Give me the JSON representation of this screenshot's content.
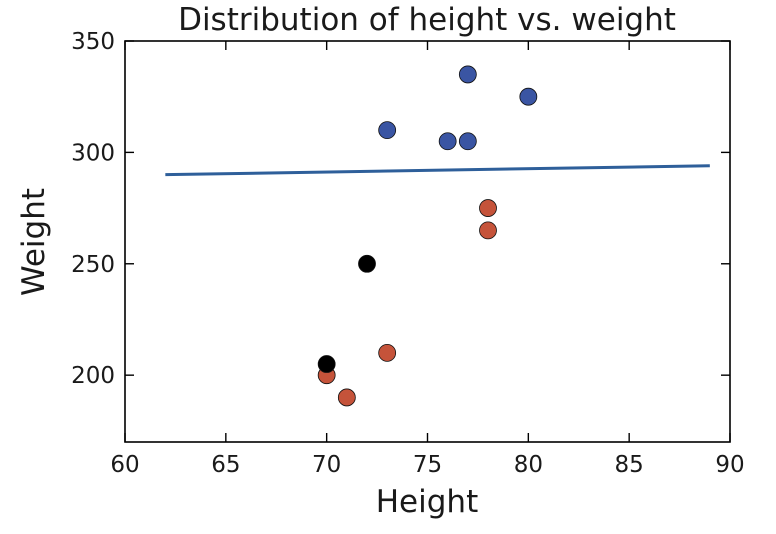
{
  "chart_data": {
    "type": "scatter",
    "title": "Distribution of height vs. weight",
    "xlabel": "Height",
    "ylabel": "Weight",
    "xlim": [
      60,
      90
    ],
    "ylim": [
      170,
      350
    ],
    "x_ticks": [
      60,
      65,
      70,
      75,
      80,
      85,
      90
    ],
    "y_ticks": [
      200,
      250,
      300,
      350
    ],
    "grid": false,
    "series": [
      {
        "color": "#3a55a3",
        "points": [
          [
            73,
            310
          ],
          [
            76,
            305
          ],
          [
            77,
            305
          ],
          [
            77,
            335
          ],
          [
            80,
            325
          ]
        ]
      },
      {
        "color": "#c5533a",
        "points": [
          [
            70,
            200
          ],
          [
            71,
            190
          ],
          [
            73,
            210
          ],
          [
            78,
            265
          ],
          [
            78,
            275
          ]
        ]
      },
      {
        "color": "#000000",
        "points": [
          [
            70,
            205
          ],
          [
            72,
            250
          ]
        ]
      }
    ],
    "fit_line": {
      "color": "#2e5f9a",
      "points": [
        [
          62,
          290
        ],
        [
          89,
          294
        ]
      ]
    }
  }
}
